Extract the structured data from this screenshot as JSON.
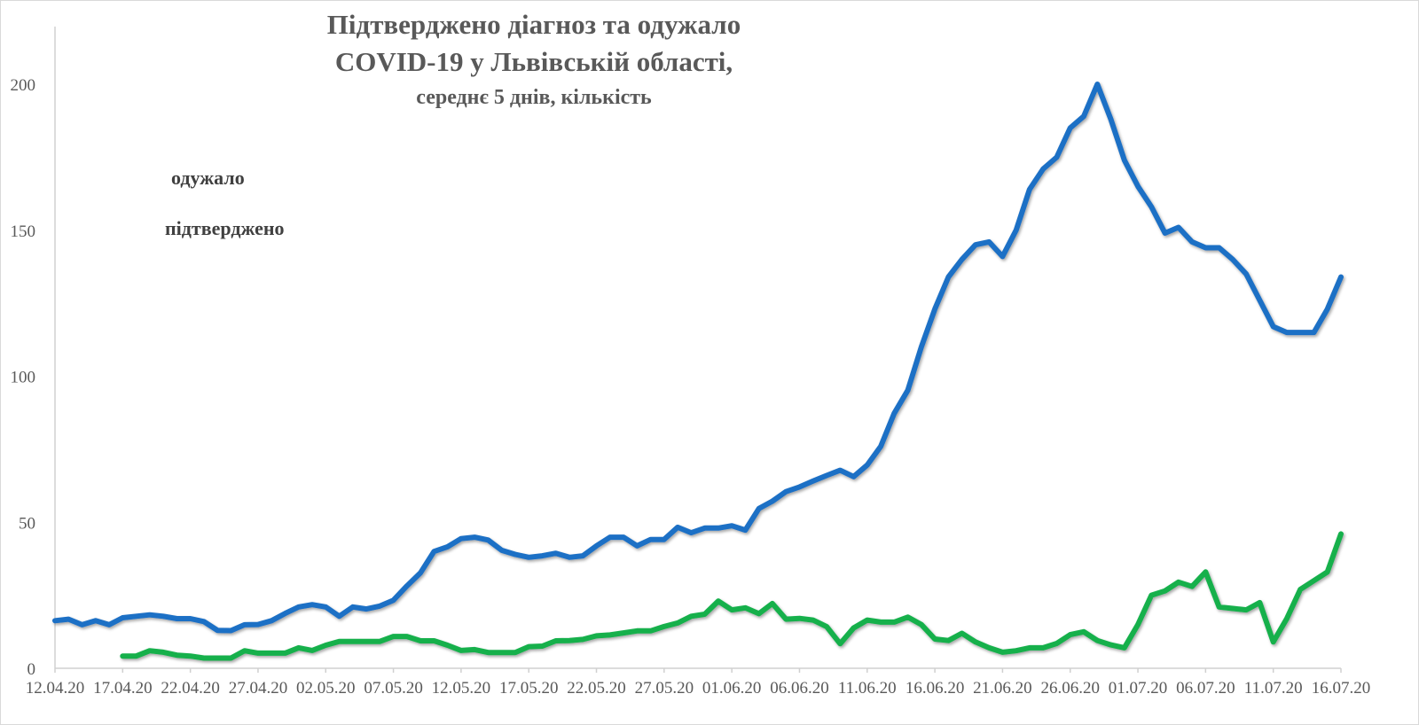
{
  "chart_data": {
    "type": "line",
    "title": [
      "Підтверджено діагноз та одужало",
      "COVID-19 у Львівській області,",
      "середнє 5 днів, кількість"
    ],
    "xlabel": "",
    "ylabel": "",
    "ylim": [
      0,
      200
    ],
    "yticks": [
      0,
      50,
      100,
      150,
      200
    ],
    "x_start": "12.04.20",
    "x_end": "16.07.20",
    "x_tick_every_days": 5,
    "xtick_labels": [
      "12.04.20",
      "17.04.20",
      "22.04.20",
      "27.04.20",
      "02.05.20",
      "07.05.20",
      "12.05.20",
      "17.05.20",
      "22.05.20",
      "27.05.20",
      "01.06.20",
      "06.06.20",
      "11.06.20",
      "16.06.20",
      "21.06.20",
      "26.06.20",
      "01.07.20",
      "06.07.20",
      "11.07.20",
      "16.07.20"
    ],
    "grid": false,
    "legend_placement": "top-left",
    "series": [
      {
        "name": "одужало",
        "color": "#14b04c",
        "start_day_index": 5,
        "values": [
          4.2,
          4.2,
          6,
          5.5,
          4.5,
          4.2,
          3.5,
          3.5,
          3.5,
          6,
          5.2,
          5.2,
          5.2,
          7,
          6.1,
          7.9,
          9.2,
          9.2,
          9.2,
          9.2,
          10.9,
          10.9,
          9.4,
          9.4,
          7.9,
          6.1,
          6.4,
          5.4,
          5.4,
          5.4,
          7.4,
          7.6,
          9.4,
          9.5,
          9.9,
          11.1,
          11.4,
          12.1,
          12.8,
          12.8,
          14.3,
          15.5,
          17.8,
          18.5,
          23,
          20,
          20.7,
          18.7,
          22.2,
          16.8,
          17.1,
          16.5,
          14.3,
          8.4,
          13.8,
          16.5,
          15.8,
          15.8,
          17.5,
          15,
          10,
          9.5,
          12,
          9,
          7,
          5.5,
          6,
          7,
          7,
          8.5,
          11.5,
          12.5,
          9.5,
          8,
          7,
          15,
          25,
          26.5,
          29.5,
          28,
          33,
          21,
          20.5,
          20,
          22.5,
          9,
          17,
          27,
          30,
          33,
          46
        ]
      },
      {
        "name": "підтверджено",
        "color": "#1f6fc5",
        "start_day_index": 0,
        "values": [
          16.3,
          16.8,
          14.9,
          16.3,
          14.9,
          17.3,
          17.8,
          18.3,
          17.8,
          17,
          17,
          16,
          13,
          12.9,
          14.9,
          15,
          16.3,
          18.8,
          21,
          21.8,
          21,
          17.8,
          21,
          20.3,
          21.3,
          23.3,
          28.2,
          32.7,
          40,
          41.6,
          44.4,
          44.9,
          43.9,
          40.4,
          39,
          38,
          38.5,
          39.4,
          38,
          38.5,
          41.9,
          44.9,
          44.9,
          41.9,
          44.1,
          44.1,
          48.3,
          46.4,
          48,
          48,
          48.8,
          47.3,
          54.7,
          57.2,
          60.5,
          62.1,
          64.1,
          66,
          67.8,
          65.6,
          69.6,
          76,
          87.3,
          95.2,
          110,
          123,
          134,
          140,
          145,
          146,
          141,
          150,
          164,
          171,
          175,
          185,
          189,
          200,
          188,
          174,
          165,
          158,
          149,
          151,
          146,
          144,
          144,
          140,
          135,
          126,
          117,
          115,
          115,
          115,
          123,
          134
        ]
      }
    ]
  }
}
